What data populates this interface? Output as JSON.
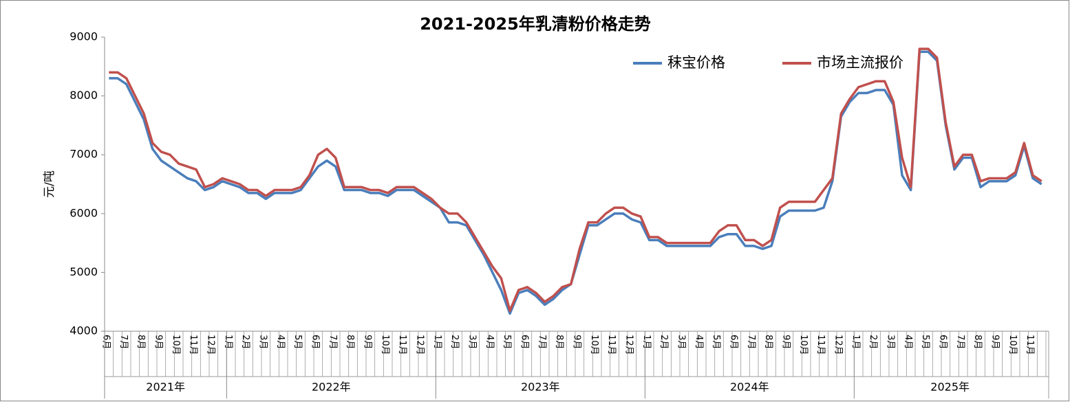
{
  "chart_data": {
    "type": "line",
    "title": "2021-2025年乳清粉价格走势",
    "y_label": "元/吨",
    "categories": [
      "6月",
      null,
      "7月",
      null,
      "8月",
      null,
      "9月",
      null,
      "10月",
      null,
      "11月",
      null,
      "12月",
      null,
      "1月",
      null,
      "2月",
      null,
      "3月",
      null,
      "4月",
      null,
      "5月",
      null,
      "6月",
      null,
      "7月",
      null,
      "8月",
      null,
      "9月",
      null,
      "10月",
      null,
      "11月",
      null,
      "12月",
      null,
      "1月",
      null,
      "2月",
      null,
      "3月",
      null,
      "4月",
      null,
      "5月",
      null,
      "6月",
      null,
      "7月",
      null,
      "8月",
      null,
      "9月",
      null,
      "10月",
      null,
      "11月",
      null,
      "12月",
      null,
      "1月",
      null,
      "2月",
      null,
      "3月",
      null,
      "4月",
      null,
      "5月",
      null,
      "6月",
      null,
      "7月",
      null,
      "8月",
      null,
      "9月",
      null,
      "10月",
      null,
      "11月",
      null,
      "12月",
      null,
      "1月",
      null,
      "2月",
      null,
      "3月",
      null,
      "4月",
      null,
      "5月",
      null,
      "6月",
      null,
      "7月",
      null,
      "8月",
      null,
      "9月",
      null,
      "10月",
      null,
      "11月",
      null
    ],
    "years": [
      "2021年",
      "2022年",
      "2023年",
      "2024年",
      "2025年"
    ],
    "series": [
      {
        "name": "秣宝价格",
        "color": "#4a7ebb",
        "values": [
          8300,
          8300,
          8200,
          7900,
          7600,
          7100,
          6900,
          6800,
          6700,
          6600,
          6550,
          6400,
          6450,
          6550,
          6500,
          6450,
          6350,
          6350,
          6250,
          6350,
          6350,
          6350,
          6400,
          6600,
          6800,
          6900,
          6800,
          6400,
          6400,
          6400,
          6350,
          6350,
          6300,
          6400,
          6400,
          6400,
          6300,
          6200,
          6100,
          5850,
          5850,
          5800,
          5550,
          5300,
          5000,
          4700,
          4300,
          4650,
          4700,
          4600,
          4450,
          4550,
          4700,
          4800,
          5300,
          5800,
          5800,
          5900,
          6000,
          6000,
          5900,
          5850,
          5550,
          5550,
          5450,
          5450,
          5450,
          5450,
          5450,
          5450,
          5600,
          5650,
          5650,
          5450,
          5450,
          5400,
          5450,
          5950,
          6050,
          6050,
          6050,
          6050,
          6100,
          6550,
          7650,
          7900,
          8050,
          8050,
          8100,
          8100,
          7850,
          6650,
          6400,
          8750,
          8750,
          8600,
          7500,
          6750,
          6950,
          6950,
          6450,
          6550,
          6550,
          6550,
          6650,
          7150,
          6600,
          6500
        ]
      },
      {
        "name": "市场主流报价",
        "color": "#c0504d",
        "values": [
          8400,
          8400,
          8300,
          8000,
          7700,
          7200,
          7050,
          7000,
          6850,
          6800,
          6750,
          6450,
          6500,
          6600,
          6550,
          6500,
          6400,
          6400,
          6300,
          6400,
          6400,
          6400,
          6450,
          6650,
          7000,
          7100,
          6950,
          6450,
          6450,
          6450,
          6400,
          6400,
          6350,
          6450,
          6450,
          6450,
          6350,
          6250,
          6100,
          6000,
          6000,
          5850,
          5600,
          5350,
          5100,
          4900,
          4350,
          4700,
          4750,
          4650,
          4500,
          4600,
          4750,
          4800,
          5400,
          5850,
          5850,
          6000,
          6100,
          6100,
          6000,
          5950,
          5600,
          5600,
          5500,
          5500,
          5500,
          5500,
          5500,
          5500,
          5700,
          5800,
          5800,
          5550,
          5550,
          5450,
          5550,
          6100,
          6200,
          6200,
          6200,
          6200,
          6400,
          6600,
          7700,
          7950,
          8150,
          8200,
          8250,
          8250,
          7900,
          6950,
          6450,
          8800,
          8800,
          8650,
          7550,
          6800,
          7000,
          7000,
          6550,
          6600,
          6600,
          6600,
          6700,
          7200,
          6650,
          6550
        ]
      }
    ],
    "ylim": [
      4000,
      9000
    ],
    "yticks": [
      4000,
      5000,
      6000,
      7000,
      8000,
      9000
    ],
    "grid": false,
    "legend": "top-right"
  }
}
